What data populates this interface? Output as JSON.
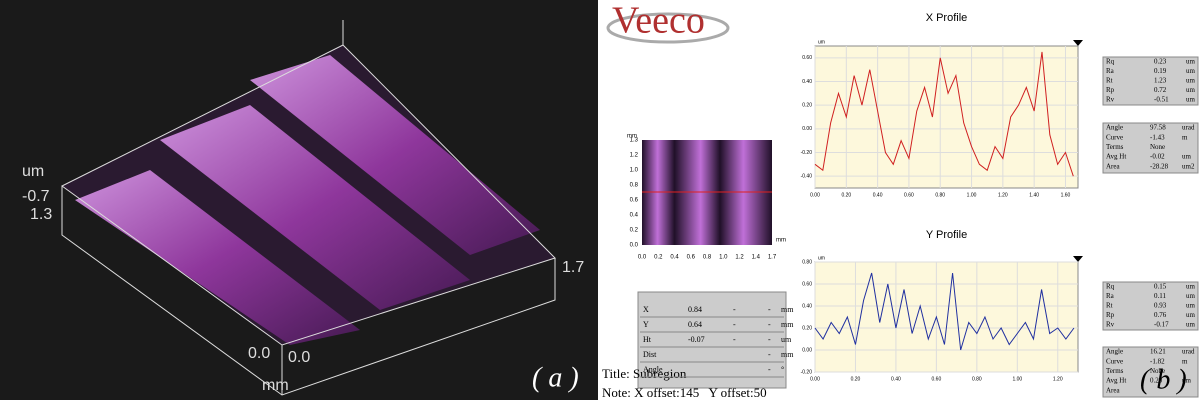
{
  "panel_a": {
    "labels": {
      "z_unit": "um",
      "z_min": "-0.7",
      "y_max": "1.3",
      "x_max": "1.7",
      "origin_y": "0.0",
      "origin_x": "0.0",
      "x_unit": "mm"
    },
    "tag": "( a )"
  },
  "panel_b": {
    "logo": "Veeco",
    "tag": "( b )",
    "title": "Title: Subregion",
    "note": "Note: X offset:145   Y offset:50",
    "map": {
      "unit_y": "mm",
      "unit_x": "mm",
      "yticks": [
        "0.0",
        "0.2",
        "0.4",
        "0.6",
        "0.8",
        "1.0",
        "1.2",
        "1.3"
      ],
      "xticks": [
        "0.0",
        "0.2",
        "0.4",
        "0.6",
        "0.8",
        "1.0",
        "1.2",
        "1.4",
        "1.7"
      ]
    },
    "x_profile": {
      "title": "X Profile",
      "unit": "um",
      "xlim": [
        0,
        1.68
      ],
      "ylim": [
        -0.5,
        0.7
      ],
      "xticks": [
        {
          "value": 0,
          "label": "0.00"
        },
        {
          "value": 0.2,
          "label": "0.20"
        },
        {
          "value": 0.4,
          "label": "0.40"
        },
        {
          "value": 0.6,
          "label": "0.60"
        },
        {
          "value": 0.8,
          "label": "0.80"
        },
        {
          "value": 1.0,
          "label": "1.00"
        },
        {
          "value": 1.2,
          "label": "1.20"
        },
        {
          "value": 1.4,
          "label": "1.40"
        },
        {
          "value": 1.6,
          "label": "1.60"
        }
      ],
      "yticks": [
        {
          "value": -0.4,
          "label": "-0.40"
        },
        {
          "value": -0.2,
          "label": "-0.20"
        },
        {
          "value": 0,
          "label": "0.00"
        },
        {
          "value": 0.2,
          "label": "0.20"
        },
        {
          "value": 0.4,
          "label": "0.40"
        },
        {
          "value": 0.6,
          "label": "0.60"
        }
      ],
      "color": "#d02020",
      "x": [
        0,
        0.05,
        0.1,
        0.15,
        0.2,
        0.25,
        0.3,
        0.35,
        0.4,
        0.45,
        0.5,
        0.55,
        0.6,
        0.65,
        0.7,
        0.75,
        0.8,
        0.85,
        0.9,
        0.95,
        1.0,
        1.05,
        1.1,
        1.15,
        1.2,
        1.25,
        1.3,
        1.35,
        1.4,
        1.45,
        1.5,
        1.55,
        1.6,
        1.65
      ],
      "values": [
        -0.3,
        -0.35,
        0.05,
        0.3,
        0.1,
        0.45,
        0.2,
        0.5,
        0.15,
        -0.2,
        -0.3,
        -0.1,
        -0.25,
        0.15,
        0.35,
        0.1,
        0.6,
        0.3,
        0.45,
        0.05,
        -0.15,
        -0.3,
        -0.35,
        -0.15,
        -0.25,
        0.1,
        0.2,
        0.35,
        0.15,
        0.65,
        -0.05,
        -0.3,
        -0.2,
        -0.4
      ]
    },
    "y_profile": {
      "title": "Y Profile",
      "unit": "um",
      "xlim": [
        0,
        1.3
      ],
      "ylim": [
        -0.2,
        0.8
      ],
      "xticks": [
        {
          "value": 0,
          "label": "0.00"
        },
        {
          "value": 0.2,
          "label": "0.20"
        },
        {
          "value": 0.4,
          "label": "0.40"
        },
        {
          "value": 0.6,
          "label": "0.60"
        },
        {
          "value": 0.8,
          "label": "0.80"
        },
        {
          "value": 1.0,
          "label": "1.00"
        },
        {
          "value": 1.2,
          "label": "1.20"
        }
      ],
      "yticks": [
        {
          "value": -0.2,
          "label": "-0.20"
        },
        {
          "value": 0,
          "label": "0.00"
        },
        {
          "value": 0.2,
          "label": "0.20"
        },
        {
          "value": 0.4,
          "label": "0.40"
        },
        {
          "value": 0.6,
          "label": "0.60"
        },
        {
          "value": 0.8,
          "label": "0.80"
        }
      ],
      "color": "#2030a0",
      "x": [
        0,
        0.04,
        0.08,
        0.12,
        0.16,
        0.2,
        0.24,
        0.28,
        0.32,
        0.36,
        0.4,
        0.44,
        0.48,
        0.52,
        0.56,
        0.6,
        0.64,
        0.68,
        0.72,
        0.76,
        0.8,
        0.84,
        0.88,
        0.92,
        0.96,
        1.0,
        1.04,
        1.08,
        1.12,
        1.16,
        1.2,
        1.24,
        1.28
      ],
      "values": [
        0.2,
        0.1,
        0.25,
        0.15,
        0.3,
        0.05,
        0.45,
        0.7,
        0.25,
        0.6,
        0.2,
        0.55,
        0.15,
        0.4,
        0.1,
        0.3,
        0.05,
        0.7,
        0.0,
        0.25,
        0.15,
        0.3,
        0.1,
        0.2,
        0.05,
        0.15,
        0.25,
        0.1,
        0.55,
        0.15,
        0.2,
        0.1,
        0.2
      ]
    },
    "cursor_table": {
      "rows": [
        [
          "X",
          "0.84",
          "-",
          "-",
          "mm"
        ],
        [
          "Y",
          "0.64",
          "-",
          "-",
          "mm"
        ],
        [
          "Ht",
          "-0.07",
          "-",
          "-",
          "um"
        ],
        [
          "Dist",
          "-",
          "mm"
        ],
        [
          "Angle",
          "-",
          "°"
        ]
      ]
    },
    "x_stats": {
      "rows": [
        [
          "Rq",
          "0.23",
          "um"
        ],
        [
          "Ra",
          "0.19",
          "um"
        ],
        [
          "Rt",
          "1.23",
          "um"
        ],
        [
          "Rp",
          "0.72",
          "um"
        ],
        [
          "Rv",
          "-0.51",
          "um"
        ]
      ]
    },
    "x_stats2": {
      "rows": [
        [
          "Angle",
          "97.58",
          "urad"
        ],
        [
          "Curve",
          "-1.43",
          "m"
        ],
        [
          "Terms",
          "None"
        ],
        [
          "Avg Ht",
          "-0.02",
          "um"
        ],
        [
          "Area",
          "-28.28",
          "um2"
        ]
      ]
    },
    "y_stats": {
      "rows": [
        [
          "Rq",
          "0.15",
          "um"
        ],
        [
          "Ra",
          "0.11",
          "um"
        ],
        [
          "Rt",
          "0.93",
          "um"
        ],
        [
          "Rp",
          "0.76",
          "um"
        ],
        [
          "Rv",
          "-0.17",
          "um"
        ]
      ]
    },
    "y_stats2": {
      "rows": [
        [
          "Angle",
          "16.21",
          "urad"
        ],
        [
          "Curve",
          "-1.82",
          "m"
        ],
        [
          "Terms",
          "None"
        ],
        [
          "Avg Ht",
          "0.20",
          "um"
        ],
        [
          "Area"
        ]
      ]
    }
  }
}
